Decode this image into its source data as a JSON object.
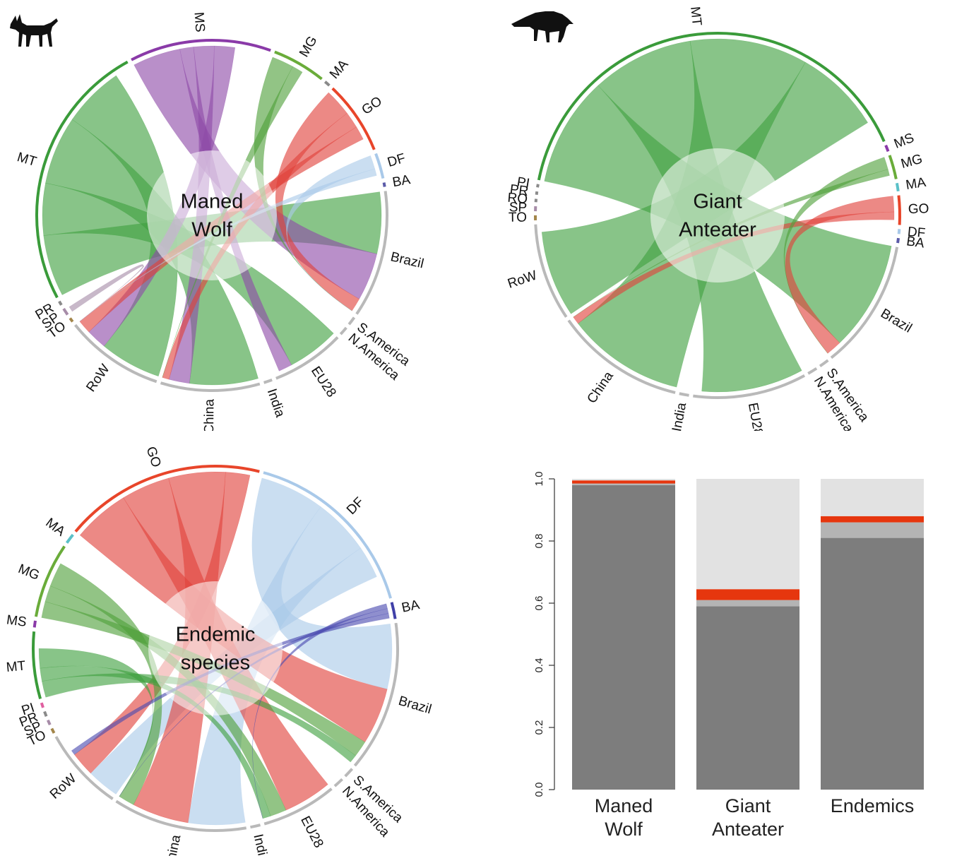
{
  "chart_data": [
    {
      "type": "chord",
      "panel": "maned-wolf",
      "center_label": [
        "Maned",
        "Wolf"
      ],
      "sectors": [
        {
          "label": "Brazil",
          "size": 9,
          "color": "#b9b9b9"
        },
        {
          "label": "S.America",
          "size": 0.6,
          "color": "#b9b9b9"
        },
        {
          "label": "N.America",
          "size": 0.6,
          "color": "#b9b9b9"
        },
        {
          "label": "EU28",
          "size": 5.2,
          "color": "#b9b9b9"
        },
        {
          "label": "India",
          "size": 0.6,
          "color": "#b9b9b9"
        },
        {
          "label": "China",
          "size": 7,
          "color": "#b9b9b9"
        },
        {
          "label": "RoW",
          "size": 7,
          "color": "#b9b9b9"
        },
        {
          "label": "TO",
          "size": 0.3,
          "color": "#a3864a"
        },
        {
          "label": "SP",
          "size": 0.5,
          "color": "#a78ca8"
        },
        {
          "label": "PR",
          "size": 0.3,
          "color": "#8a8a8a"
        },
        {
          "label": "MT",
          "size": 19,
          "color": "#3a9b3a"
        },
        {
          "label": "MS",
          "size": 10,
          "color": "#8a3aa8"
        },
        {
          "label": "MG",
          "size": 3.8,
          "color": "#6aac3a"
        },
        {
          "label": "MA",
          "size": 0.4,
          "color": "#8a8a8a"
        },
        {
          "label": "GO",
          "size": 5.2,
          "color": "#e8452a"
        },
        {
          "label": "DF",
          "size": 1.8,
          "color": "#a9c9e9"
        },
        {
          "label": "BA",
          "size": 0.3,
          "color": "#5a5aa8"
        }
      ],
      "links": [
        {
          "from": "MT",
          "to": "Brazil",
          "value": 4.5,
          "color": "#3f9f3f"
        },
        {
          "from": "MT",
          "to": "EU28",
          "value": 3.8,
          "color": "#3f9f3f"
        },
        {
          "from": "MT",
          "to": "China",
          "value": 5.0,
          "color": "#3f9f3f"
        },
        {
          "from": "MT",
          "to": "RoW",
          "value": 4.5,
          "color": "#3f9f3f"
        },
        {
          "from": "MS",
          "to": "Brazil",
          "value": 3.5,
          "color": "#8e4aa8"
        },
        {
          "from": "MS",
          "to": "EU28",
          "value": 1.0,
          "color": "#8e4aa8"
        },
        {
          "from": "MS",
          "to": "China",
          "value": 1.5,
          "color": "#8e4aa8"
        },
        {
          "from": "MS",
          "to": "RoW",
          "value": 1.5,
          "color": "#8e4aa8"
        },
        {
          "from": "GO",
          "to": "Brazil",
          "value": 2.0,
          "color": "#e0403a"
        },
        {
          "from": "GO",
          "to": "China",
          "value": 1.2,
          "color": "#e0403a"
        },
        {
          "from": "GO",
          "to": "RoW",
          "value": 1.0,
          "color": "#e0403a"
        },
        {
          "from": "MG",
          "to": "Brazil",
          "value": 1.6,
          "color": "#4f9f3a"
        },
        {
          "from": "MG",
          "to": "China",
          "value": 0.8,
          "color": "#4f9f3a"
        },
        {
          "from": "DF",
          "to": "Brazil",
          "value": 1.0,
          "color": "#a9c9e9"
        },
        {
          "from": "DF",
          "to": "RoW",
          "value": 0.5,
          "color": "#a9c9e9"
        },
        {
          "from": "SP",
          "to": "RoW",
          "value": 0.4,
          "color": "#a78ca8"
        }
      ]
    },
    {
      "type": "chord",
      "panel": "giant-anteater",
      "center_label": [
        "Giant",
        "Anteater"
      ],
      "sectors": [
        {
          "label": "Brazil",
          "size": 8,
          "color": "#b9b9b9"
        },
        {
          "label": "S.America",
          "size": 0.6,
          "color": "#b9b9b9"
        },
        {
          "label": "N.America",
          "size": 0.6,
          "color": "#b9b9b9"
        },
        {
          "label": "EU28",
          "size": 7,
          "color": "#b9b9b9"
        },
        {
          "label": "India",
          "size": 0.6,
          "color": "#b9b9b9"
        },
        {
          "label": "China",
          "size": 8,
          "color": "#b9b9b9"
        },
        {
          "label": "RoW",
          "size": 6,
          "color": "#b9b9b9"
        },
        {
          "label": "TO",
          "size": 0.3,
          "color": "#a3864a"
        },
        {
          "label": "SP",
          "size": 0.3,
          "color": "#a78ca8"
        },
        {
          "label": "RO",
          "size": 0.2,
          "color": "#8a8a8a"
        },
        {
          "label": "PR",
          "size": 0.2,
          "color": "#8a8a8a"
        },
        {
          "label": "PI",
          "size": 0.2,
          "color": "#8a8a8a"
        },
        {
          "label": "MT",
          "size": 28,
          "color": "#3a9b3a"
        },
        {
          "label": "MS",
          "size": 0.4,
          "color": "#8a3aa8"
        },
        {
          "label": "MG",
          "size": 1.5,
          "color": "#6aac3a"
        },
        {
          "label": "MA",
          "size": 0.5,
          "color": "#5ac0c8"
        },
        {
          "label": "GO",
          "size": 1.8,
          "color": "#e8452a"
        },
        {
          "label": "DF",
          "size": 0.3,
          "color": "#a9c9e9"
        },
        {
          "label": "BA",
          "size": 0.3,
          "color": "#5a5aa8"
        }
      ],
      "links": [
        {
          "from": "MT",
          "to": "Brazil",
          "value": 7.0,
          "color": "#3f9f3f"
        },
        {
          "from": "MT",
          "to": "EU28",
          "value": 6.5,
          "color": "#3f9f3f"
        },
        {
          "from": "MT",
          "to": "China",
          "value": 7.5,
          "color": "#3f9f3f"
        },
        {
          "from": "MT",
          "to": "RoW",
          "value": 5.5,
          "color": "#3f9f3f"
        },
        {
          "from": "GO",
          "to": "Brazil",
          "value": 1.0,
          "color": "#e0403a"
        },
        {
          "from": "GO",
          "to": "China",
          "value": 0.5,
          "color": "#e0403a"
        },
        {
          "from": "MG",
          "to": "Brazil",
          "value": 0.8,
          "color": "#4f9f3a"
        },
        {
          "from": "MG",
          "to": "China",
          "value": 0.4,
          "color": "#4f9f3a"
        }
      ]
    },
    {
      "type": "chord",
      "panel": "endemic-species",
      "center_label": [
        "Endemic",
        "species"
      ],
      "sectors": [
        {
          "label": "Brazil",
          "size": 9,
          "color": "#b9b9b9"
        },
        {
          "label": "S.America",
          "size": 0.6,
          "color": "#b9b9b9"
        },
        {
          "label": "N.America",
          "size": 0.6,
          "color": "#b9b9b9"
        },
        {
          "label": "EU28",
          "size": 4.5,
          "color": "#b9b9b9"
        },
        {
          "label": "India",
          "size": 0.6,
          "color": "#b9b9b9"
        },
        {
          "label": "China",
          "size": 8,
          "color": "#b9b9b9"
        },
        {
          "label": "RoW",
          "size": 5,
          "color": "#b9b9b9"
        },
        {
          "label": "TO",
          "size": 0.3,
          "color": "#a3864a"
        },
        {
          "label": "SP",
          "size": 0.3,
          "color": "#a78ca8"
        },
        {
          "label": "PR",
          "size": 0.3,
          "color": "#8a8a8a"
        },
        {
          "label": "PI",
          "size": 0.3,
          "color": "#e060a0"
        },
        {
          "label": "MT",
          "size": 4,
          "color": "#3a9b3a"
        },
        {
          "label": "MS",
          "size": 0.4,
          "color": "#8a3aa8"
        },
        {
          "label": "MG",
          "size": 4.5,
          "color": "#6aac3a"
        },
        {
          "label": "MA",
          "size": 0.6,
          "color": "#5ac0c8"
        },
        {
          "label": "GO",
          "size": 12,
          "color": "#e8452a"
        },
        {
          "label": "DF",
          "size": 11,
          "color": "#a9c9e9"
        },
        {
          "label": "BA",
          "size": 1.0,
          "color": "#4040a8"
        }
      ],
      "links": [
        {
          "from": "DF",
          "to": "Brazil",
          "value": 4.0,
          "color": "#a9c9e9"
        },
        {
          "from": "DF",
          "to": "China",
          "value": 3.5,
          "color": "#a9c9e9"
        },
        {
          "from": "DF",
          "to": "RoW",
          "value": 2.0,
          "color": "#a9c9e9"
        },
        {
          "from": "GO",
          "to": "Brazil",
          "value": 3.5,
          "color": "#e0403a"
        },
        {
          "from": "GO",
          "to": "EU28",
          "value": 3.0,
          "color": "#e0403a"
        },
        {
          "from": "GO",
          "to": "China",
          "value": 3.5,
          "color": "#e0403a"
        },
        {
          "from": "GO",
          "to": "RoW",
          "value": 1.5,
          "color": "#e0403a"
        },
        {
          "from": "MG",
          "to": "Brazil",
          "value": 1.0,
          "color": "#4f9f3a"
        },
        {
          "from": "MG",
          "to": "EU28",
          "value": 1.0,
          "color": "#4f9f3a"
        },
        {
          "from": "MG",
          "to": "China",
          "value": 1.5,
          "color": "#4f9f3a"
        },
        {
          "from": "MT",
          "to": "Brazil",
          "value": 1.0,
          "color": "#3f9f3f"
        },
        {
          "from": "MT",
          "to": "EU28",
          "value": 0.8,
          "color": "#3f9f3f"
        },
        {
          "from": "MT",
          "to": "China",
          "value": 1.2,
          "color": "#3f9f3f"
        },
        {
          "from": "BA",
          "to": "EU28",
          "value": 0.3,
          "color": "#4a4ab0"
        },
        {
          "from": "BA",
          "to": "China",
          "value": 0.3,
          "color": "#4a4ab0"
        },
        {
          "from": "BA",
          "to": "RoW",
          "value": 0.3,
          "color": "#4a4ab0"
        }
      ]
    },
    {
      "type": "bar",
      "panel": "stacked-proportions",
      "stacked": true,
      "categories": [
        "Maned\nWolf",
        "Giant\nAnteater",
        "Endemics"
      ],
      "series": [
        {
          "values": [
            0.98,
            0.59,
            0.81
          ],
          "color": "#7d7d7d"
        },
        {
          "values": [
            0.005,
            0.02,
            0.05
          ],
          "color": "#b4b4b4"
        },
        {
          "values": [
            0.01,
            0.035,
            0.02
          ],
          "color": "#e6360e"
        },
        {
          "values": [
            0.005,
            0.355,
            0.12
          ],
          "color": "#e2e2e2"
        }
      ],
      "yticks": [
        "0.0",
        "0.2",
        "0.4",
        "0.6",
        "0.8",
        "1.0"
      ],
      "ylim": [
        0,
        1
      ]
    }
  ]
}
